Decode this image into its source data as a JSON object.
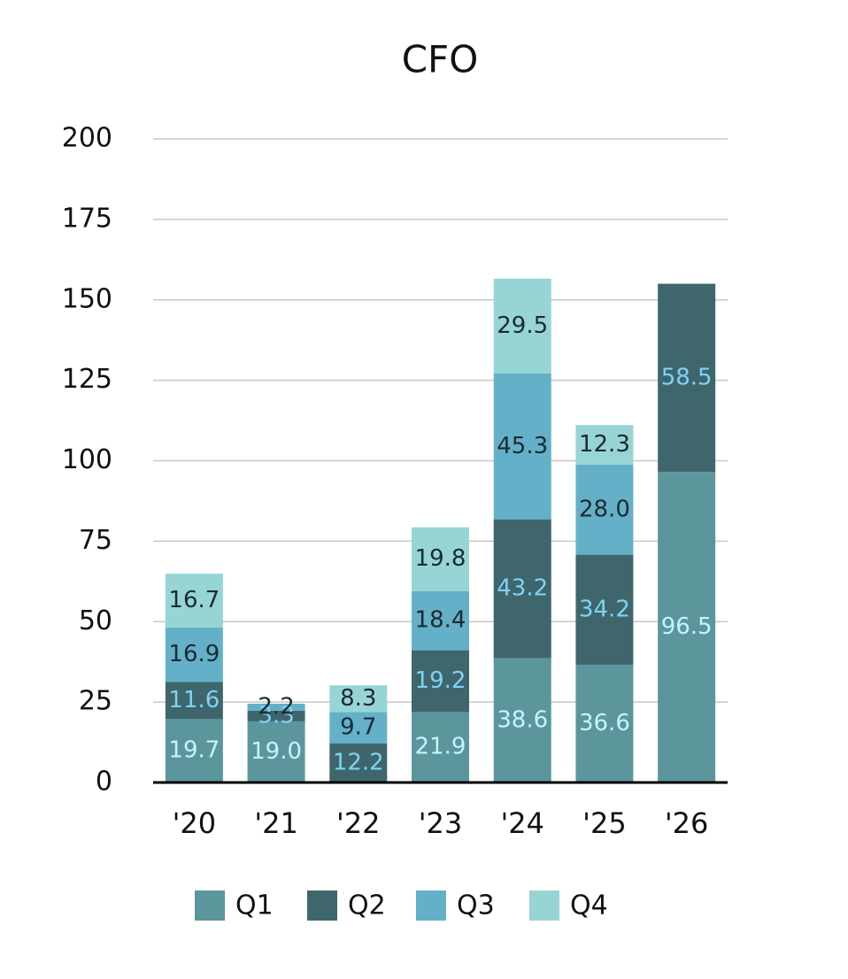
{
  "chart_data": {
    "type": "stacked-bar",
    "title": "CFO",
    "categories": [
      "'20",
      "'21",
      "'22",
      "'23",
      "'24",
      "'25",
      "'26"
    ],
    "series": [
      {
        "name": "Q1",
        "color": "#5b969d",
        "label_color": "#c4f4ff",
        "values": [
          19.7,
          19.0,
          null,
          21.9,
          38.6,
          36.6,
          96.5
        ],
        "value_labels": [
          "19.7",
          "19.0",
          null,
          "21.9",
          "38.6",
          "36.6",
          "96.5"
        ]
      },
      {
        "name": "Q2",
        "color": "#3f666d",
        "label_color": "#7fd3f3",
        "values": [
          11.6,
          3.3,
          12.2,
          19.2,
          43.2,
          34.2,
          58.5
        ],
        "value_labels": [
          "11.6",
          "3.3",
          "12.2",
          "19.2",
          "43.2",
          "34.2",
          "58.5"
        ]
      },
      {
        "name": "Q3",
        "color": "#64b0c9",
        "label_color": "#1c2b30",
        "values": [
          16.9,
          2.2,
          9.7,
          18.4,
          45.3,
          28.0,
          null
        ],
        "value_labels": [
          "16.9",
          "2.2",
          "9.7",
          "18.4",
          "45.3",
          "28.0",
          null
        ]
      },
      {
        "name": "Q4",
        "color": "#97d5d5",
        "label_color": "#1c2b30",
        "values": [
          16.7,
          null,
          8.3,
          19.8,
          29.5,
          12.3,
          null
        ],
        "value_labels": [
          "16.7",
          null,
          "8.3",
          "19.8",
          "29.5",
          "12.3",
          null
        ]
      }
    ],
    "ylim": [
      0,
      200
    ],
    "yticks": [
      0,
      25,
      50,
      75,
      100,
      125,
      150,
      175,
      200
    ],
    "grid": true,
    "legend": "bottom"
  }
}
